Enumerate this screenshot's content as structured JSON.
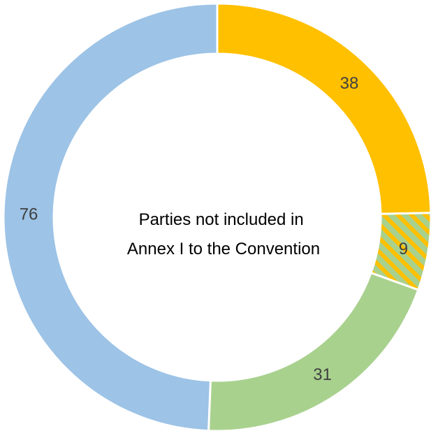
{
  "chart_data": {
    "type": "pie",
    "variant": "donut",
    "center_text": [
      "Parties not included in",
      "Annex I to the Convention"
    ],
    "slices": [
      {
        "value": 38,
        "label": "38",
        "color": "#FFC000",
        "pattern": "solid"
      },
      {
        "value": 9,
        "label": "9",
        "color": "#FFC000",
        "secondary_color": "#A9D18E",
        "pattern": "diagonal-stripes"
      },
      {
        "value": 31,
        "label": "31",
        "color": "#A9D18E",
        "pattern": "solid"
      },
      {
        "value": 76,
        "label": "76",
        "color": "#9DC3E6",
        "pattern": "solid"
      }
    ],
    "start_angle_deg": 0,
    "direction": "clockwise",
    "legend": "none"
  }
}
